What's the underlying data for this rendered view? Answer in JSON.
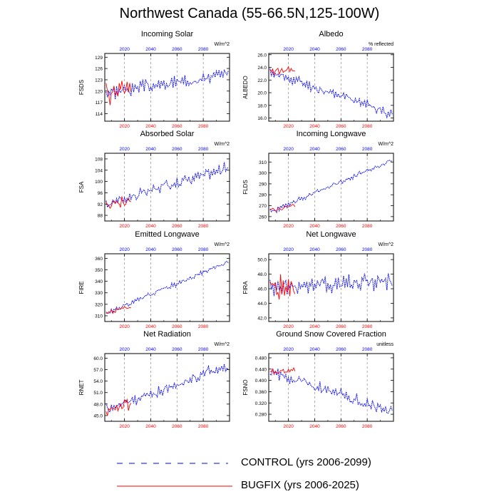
{
  "title": "Northwest Canada (55-66.5N,125-100W)",
  "legend": [
    {
      "label": "CONTROL (yrs 2006-2099)",
      "color": "#0000ff",
      "dash": "dashed"
    },
    {
      "label": "BUGFIX (yrs 2006-2025)",
      "color": "#ff0000",
      "dash": "solid"
    }
  ],
  "chart_data": [
    {
      "type": "line",
      "title": "Incoming Solar",
      "units": "W/m^2",
      "ylabel": "FSDS",
      "xlim": [
        2005,
        2100
      ],
      "ylim": [
        112,
        130
      ],
      "yticks": [
        114,
        117,
        120,
        123,
        126,
        129
      ],
      "xticks_bottom": [
        2020,
        2040,
        2060,
        2080
      ],
      "xticks_top": [
        2020,
        2040,
        2060,
        2080
      ],
      "series": [
        {
          "name": "CONTROL (yrs 2006-2099)",
          "x_start": 2006,
          "x_end": 2099,
          "trend_start": 119.5,
          "trend_end": 124.5,
          "amplitude": 2.6,
          "seed": 3
        },
        {
          "name": "BUGFIX (yrs 2006-2025)",
          "x_start": 2006,
          "x_end": 2025,
          "trend_start": 119.5,
          "trend_end": 120.0,
          "amplitude": 4.5,
          "seed": 5
        }
      ]
    },
    {
      "type": "line",
      "title": "Albedo",
      "units": "% reflected",
      "ylabel": "ALBEDO",
      "xlim": [
        2005,
        2100
      ],
      "ylim": [
        15.5,
        26.2
      ],
      "yticks": [
        16.0,
        18.0,
        20.0,
        22.0,
        24.0,
        26.0
      ],
      "xticks_bottom": [
        2020,
        2040,
        2060,
        2080
      ],
      "xticks_top": [
        2020,
        2040,
        2060,
        2080
      ],
      "series": [
        {
          "name": "CONTROL (yrs 2006-2099)",
          "x_start": 2006,
          "x_end": 2099,
          "trend_start": 23.2,
          "trend_end": 16.8,
          "amplitude": 1.2,
          "seed": 11
        },
        {
          "name": "BUGFIX (yrs 2006-2025)",
          "x_start": 2006,
          "x_end": 2025,
          "trend_start": 23.3,
          "trend_end": 23.6,
          "amplitude": 0.9,
          "seed": 13
        }
      ]
    },
    {
      "type": "line",
      "title": "Absorbed Solar",
      "units": "W/m^2",
      "ylabel": "FSA",
      "xlim": [
        2005,
        2100
      ],
      "ylim": [
        86,
        110
      ],
      "yticks": [
        88,
        92,
        96,
        100,
        104,
        108
      ],
      "xticks_bottom": [
        2020,
        2040,
        2060,
        2080
      ],
      "xticks_top": [
        2020,
        2040,
        2060,
        2080
      ],
      "series": [
        {
          "name": "CONTROL (yrs 2006-2099)",
          "x_start": 2006,
          "x_end": 2099,
          "trend_start": 92.0,
          "trend_end": 105.0,
          "amplitude": 2.8,
          "seed": 17
        },
        {
          "name": "BUGFIX (yrs 2006-2025)",
          "x_start": 2006,
          "x_end": 2025,
          "trend_start": 91.5,
          "trend_end": 93.5,
          "amplitude": 3.6,
          "seed": 19
        }
      ]
    },
    {
      "type": "line",
      "title": "Incoming Longwave",
      "units": "W/m^2",
      "ylabel": "FLDS",
      "xlim": [
        2005,
        2100
      ],
      "ylim": [
        256,
        318
      ],
      "yticks": [
        260,
        270,
        280,
        290,
        300,
        310
      ],
      "xticks_bottom": [
        2020,
        2040,
        2060,
        2080
      ],
      "xticks_top": [
        2020,
        2040,
        2060,
        2080
      ],
      "series": [
        {
          "name": "CONTROL (yrs 2006-2099)",
          "x_start": 2006,
          "x_end": 2099,
          "trend_start": 264.0,
          "trend_end": 312.0,
          "amplitude": 3.5,
          "seed": 23
        },
        {
          "name": "BUGFIX (yrs 2006-2025)",
          "x_start": 2006,
          "x_end": 2025,
          "trend_start": 265.0,
          "trend_end": 271.0,
          "amplitude": 3.0,
          "seed": 29
        }
      ]
    },
    {
      "type": "line",
      "title": "Emitted Longwave",
      "units": "W/m^2",
      "ylabel": "FIRE",
      "xlim": [
        2005,
        2100
      ],
      "ylim": [
        305,
        364
      ],
      "yticks": [
        310,
        320,
        330,
        340,
        350,
        360
      ],
      "xticks_bottom": [
        2020,
        2040,
        2060,
        2080
      ],
      "xticks_top": [
        2020,
        2040,
        2060,
        2080
      ],
      "series": [
        {
          "name": "CONTROL (yrs 2006-2099)",
          "x_start": 2006,
          "x_end": 2099,
          "trend_start": 312.0,
          "trend_end": 357.0,
          "amplitude": 3.2,
          "seed": 31
        },
        {
          "name": "BUGFIX (yrs 2006-2025)",
          "x_start": 2006,
          "x_end": 2025,
          "trend_start": 312.0,
          "trend_end": 318.0,
          "amplitude": 2.8,
          "seed": 37
        }
      ]
    },
    {
      "type": "line",
      "title": "Net Longwave",
      "units": "W/m^2",
      "ylabel": "FIRA",
      "xlim": [
        2005,
        2100
      ],
      "ylim": [
        41.5,
        50.8
      ],
      "yticks": [
        42.0,
        44.0,
        46.0,
        48.0,
        50.0
      ],
      "xticks_bottom": [
        2020,
        2040,
        2060,
        2080
      ],
      "xticks_top": [
        2020,
        2040,
        2060,
        2080
      ],
      "series": [
        {
          "name": "CONTROL (yrs 2006-2099)",
          "x_start": 2006,
          "x_end": 2099,
          "trend_start": 46.2,
          "trend_end": 47.0,
          "amplitude": 1.9,
          "seed": 41
        },
        {
          "name": "BUGFIX (yrs 2006-2025)",
          "x_start": 2006,
          "x_end": 2025,
          "trend_start": 45.8,
          "trend_end": 46.2,
          "amplitude": 2.6,
          "seed": 43
        }
      ]
    },
    {
      "type": "line",
      "title": "Net Radiation",
      "units": "W/m^2",
      "ylabel": "RNET",
      "xlim": [
        2005,
        2100
      ],
      "ylim": [
        43.5,
        61.2
      ],
      "yticks": [
        45.0,
        48.0,
        51.0,
        54.0,
        57.0,
        60.0
      ],
      "xticks_bottom": [
        2020,
        2040,
        2060,
        2080
      ],
      "xticks_top": [
        2020,
        2040,
        2060,
        2080
      ],
      "series": [
        {
          "name": "CONTROL (yrs 2006-2099)",
          "x_start": 2006,
          "x_end": 2099,
          "trend_start": 46.5,
          "trend_end": 58.0,
          "amplitude": 2.0,
          "seed": 47
        },
        {
          "name": "BUGFIX (yrs 2006-2025)",
          "x_start": 2006,
          "x_end": 2025,
          "trend_start": 46.5,
          "trend_end": 48.0,
          "amplitude": 2.2,
          "seed": 53
        }
      ]
    },
    {
      "type": "line",
      "title": "Ground Snow Covered Fraction",
      "units": "unitless",
      "ylabel": "FSNO",
      "xlim": [
        2005,
        2100
      ],
      "ylim": [
        0.255,
        0.495
      ],
      "yticks": [
        0.28,
        0.32,
        0.36,
        0.4,
        0.44,
        0.48
      ],
      "xticks_bottom": [
        2020,
        2040,
        2060,
        2080
      ],
      "xticks_top": [
        2020,
        2040,
        2060,
        2080
      ],
      "series": [
        {
          "name": "CONTROL (yrs 2006-2099)",
          "x_start": 2006,
          "x_end": 2099,
          "trend_start": 0.43,
          "trend_end": 0.29,
          "amplitude": 0.03,
          "seed": 59
        },
        {
          "name": "BUGFIX (yrs 2006-2025)",
          "x_start": 2006,
          "x_end": 2025,
          "trend_start": 0.428,
          "trend_end": 0.432,
          "amplitude": 0.018,
          "seed": 61
        }
      ]
    }
  ]
}
